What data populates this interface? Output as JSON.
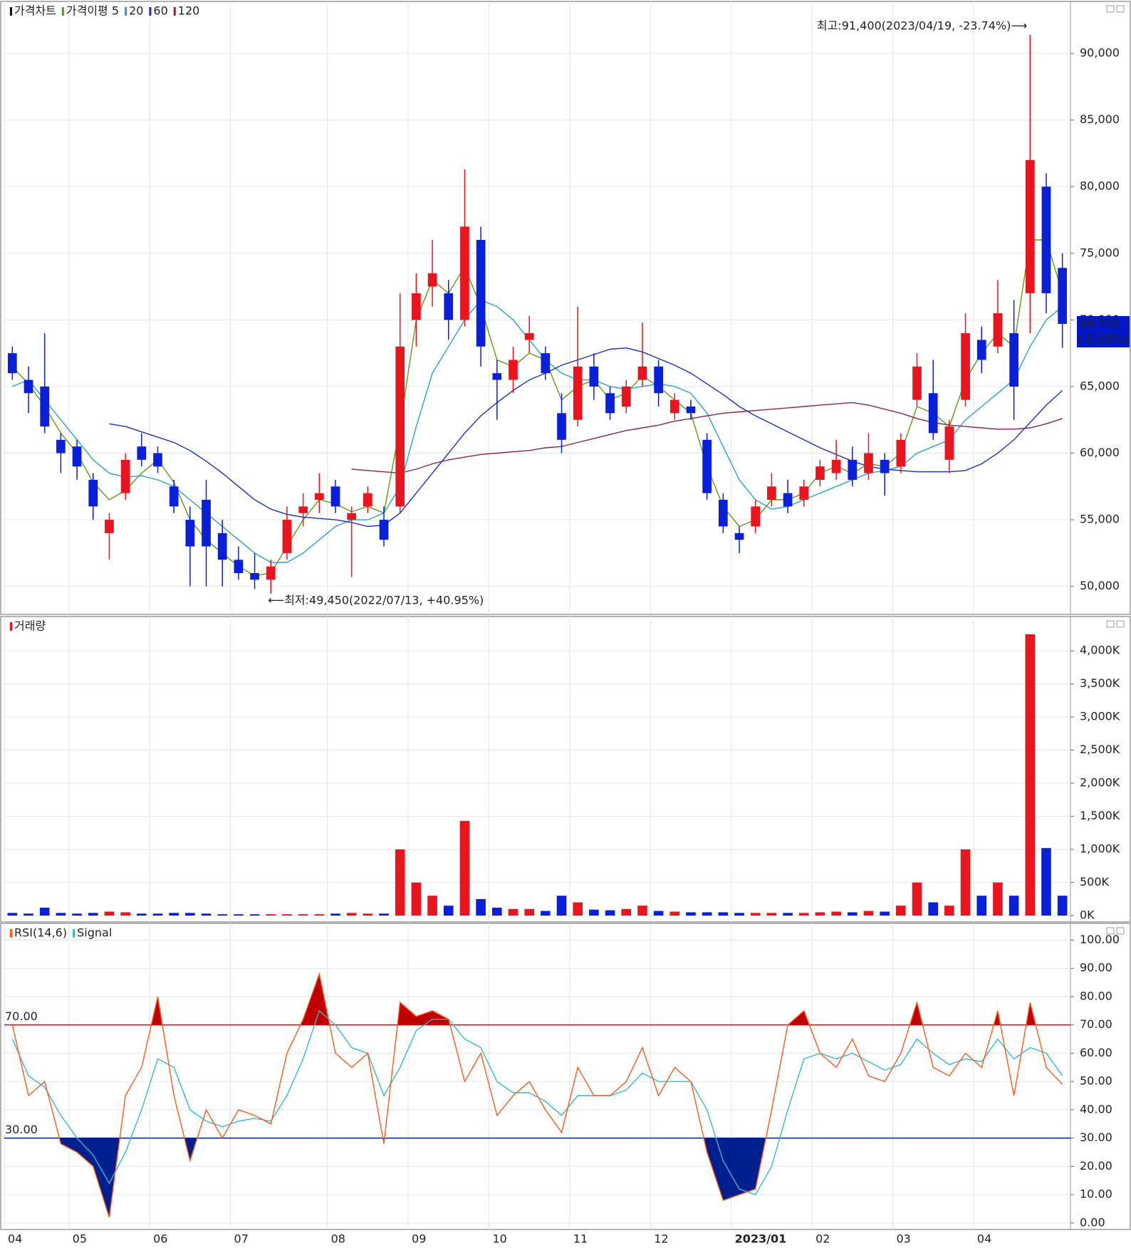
{
  "chart_data": [
    {
      "type": "candlestick",
      "name": "가격차트",
      "name_color": "#111111",
      "up_color": "#e8141e",
      "down_color": "#0a1fd8",
      "open": [
        67500,
        65500,
        65000,
        61000,
        60500,
        58000,
        54000,
        57000,
        60500,
        60000,
        57500,
        55000,
        56500,
        54000,
        52000,
        51000,
        50500,
        52500,
        55500,
        56500,
        57500,
        55000,
        56000,
        55000,
        56000,
        70000,
        72500,
        72000,
        70000,
        76000,
        66000,
        65500,
        68500,
        67500,
        63000,
        62500,
        66500,
        64500,
        63500,
        65500,
        66500,
        63000,
        63500,
        61000,
        56500,
        54000,
        54500,
        56500,
        57000,
        56500,
        58000,
        58500,
        59500,
        58500,
        59500,
        59000,
        64000,
        64500,
        59500,
        64000,
        68500,
        68000,
        69000,
        72000,
        80000,
        73900
      ],
      "high": [
        68000,
        66500,
        69000,
        61500,
        61000,
        58500,
        55500,
        60000,
        61500,
        60500,
        58000,
        56000,
        58000,
        55000,
        53000,
        52500,
        52000,
        56000,
        57000,
        58500,
        58000,
        56000,
        57500,
        56000,
        72000,
        73500,
        76000,
        73000,
        81300,
        77000,
        67000,
        68000,
        70300,
        68000,
        64500,
        71000,
        67500,
        65000,
        65500,
        69800,
        67000,
        64500,
        64000,
        61500,
        57000,
        54500,
        56500,
        58500,
        58000,
        58000,
        59500,
        61000,
        60500,
        61500,
        60000,
        61500,
        67500,
        67000,
        62500,
        70500,
        69500,
        73000,
        71500,
        91400,
        81000,
        75000
      ],
      "low": [
        65500,
        63000,
        61500,
        58500,
        58000,
        55000,
        52000,
        56500,
        59000,
        58500,
        55500,
        50000,
        50000,
        50000,
        50500,
        49800,
        49450,
        52000,
        54500,
        55500,
        55500,
        50700,
        55500,
        53000,
        55500,
        68000,
        71000,
        68500,
        69500,
        66500,
        62500,
        64500,
        67500,
        65500,
        60000,
        62000,
        64000,
        62500,
        63000,
        65000,
        63500,
        62500,
        62500,
        56500,
        54000,
        52500,
        54000,
        56000,
        55500,
        56000,
        57500,
        58000,
        57500,
        58000,
        56800,
        58500,
        63500,
        61000,
        58500,
        63500,
        66000,
        67500,
        62500,
        69000,
        70500,
        67900
      ],
      "close": [
        66000,
        64500,
        62000,
        60000,
        59000,
        56000,
        55000,
        59500,
        59500,
        59000,
        56000,
        53000,
        53000,
        52000,
        51000,
        50500,
        51500,
        55000,
        56000,
        57000,
        56000,
        55500,
        57000,
        53500,
        68000,
        72000,
        73500,
        70000,
        77000,
        68000,
        65500,
        67000,
        69000,
        66000,
        61000,
        66500,
        65000,
        63000,
        65000,
        66500,
        64500,
        64000,
        63000,
        57000,
        54500,
        53500,
        56000,
        57500,
        56000,
        57500,
        59000,
        59500,
        58000,
        60000,
        58500,
        61000,
        66500,
        61500,
        62000,
        69000,
        67000,
        70500,
        65000,
        82000,
        72000,
        69700
      ],
      "series": [
        {
          "name": "가격이평 5",
          "color": "#5f9a12",
          "values": [
            66500,
            65200,
            63500,
            61500,
            60000,
            57800,
            56500,
            57200,
            58500,
            59500,
            57800,
            55000,
            53500,
            52500,
            51500,
            50800,
            51000,
            53000,
            55000,
            56500,
            56200,
            55600,
            56000,
            55500,
            62000,
            70000,
            73000,
            72000,
            74000,
            71000,
            67000,
            66500,
            67500,
            67000,
            64000,
            65000,
            65500,
            64000,
            64500,
            65800,
            65000,
            64000,
            63000,
            59000,
            56000,
            54500,
            55000,
            56500,
            56500,
            57000,
            58500,
            59000,
            58500,
            59200,
            59000,
            60000,
            63500,
            63000,
            62000,
            65500,
            67500,
            69000,
            68000,
            76000,
            76000,
            72000
          ]
        },
        {
          "name": "20",
          "color": "#2a9fd8",
          "values": [
            65000,
            65500,
            64000,
            62500,
            61000,
            59500,
            58500,
            58200,
            58300,
            58000,
            57500,
            56500,
            55500,
            54500,
            53500,
            52500,
            51800,
            51800,
            52500,
            53500,
            54500,
            55000,
            55000,
            55500,
            57500,
            62000,
            66000,
            68000,
            70000,
            71500,
            71000,
            70000,
            68500,
            67000,
            66000,
            65500,
            65500,
            65000,
            64800,
            65000,
            65200,
            65000,
            64500,
            63000,
            60500,
            58000,
            56500,
            55800,
            56000,
            56500,
            57000,
            57500,
            58000,
            58500,
            58700,
            59000,
            60000,
            60500,
            61000,
            62500,
            63500,
            64500,
            65500,
            68000,
            70000,
            71000
          ]
        },
        {
          "name": "60",
          "color": "#1a2ed0",
          "values": [
            null,
            null,
            null,
            null,
            null,
            null,
            62200,
            62000,
            61600,
            61200,
            60800,
            60200,
            59400,
            58500,
            57500,
            56500,
            55800,
            55400,
            55200,
            55100,
            55000,
            54800,
            54500,
            54600,
            55500,
            57000,
            58500,
            60000,
            61500,
            62800,
            63800,
            64700,
            65500,
            66000,
            66600,
            67000,
            67400,
            67800,
            67900,
            67600,
            67100,
            66600,
            66000,
            65200,
            64400,
            63500,
            62800,
            62200,
            61600,
            61000,
            60400,
            59900,
            59400,
            59000,
            58800,
            58700,
            58600,
            58600,
            58600,
            58700,
            59200,
            60000,
            61000,
            62300,
            63600,
            64700
          ]
        },
        {
          "name": "120",
          "color": "#8b2252",
          "values": [
            null,
            null,
            null,
            null,
            null,
            null,
            null,
            null,
            null,
            null,
            null,
            null,
            null,
            null,
            null,
            null,
            null,
            null,
            null,
            null,
            null,
            58800,
            58700,
            58600,
            58500,
            58800,
            59200,
            59500,
            59700,
            59900,
            60000,
            60100,
            60200,
            60400,
            60500,
            60800,
            61100,
            61400,
            61700,
            61900,
            62100,
            62400,
            62600,
            62800,
            63000,
            63100,
            63200,
            63300,
            63400,
            63500,
            63600,
            63700,
            63800,
            63600,
            63300,
            63000,
            62600,
            62300,
            62100,
            62000,
            61900,
            61800,
            61800,
            61900,
            62200,
            62600
          ]
        }
      ],
      "ylim": [
        47900,
        93900
      ],
      "yticks": [
        {
          "value": 50000,
          "label": "50,000"
        },
        {
          "value": 55000,
          "label": "55,000"
        },
        {
          "value": 60000,
          "label": "60,000"
        },
        {
          "value": 65000,
          "label": "65,000"
        },
        {
          "value": 70000,
          "label": "70,000"
        },
        {
          "value": 75000,
          "label": "75,000"
        },
        {
          "value": 80000,
          "label": "80,000"
        },
        {
          "value": 85000,
          "label": "85,000"
        },
        {
          "value": 90000,
          "label": "90,000"
        }
      ],
      "high_annotation": "최고:91,400(2023/04/19, -23.74%)⟶",
      "low_annotation": "⟵최저:49,450(2022/07/13, +40.95%)",
      "last_price_label": "69,700",
      "last_change_label": "(-5.68%)",
      "last_box_color": "#0018c8",
      "annotation_color": "#e8141e",
      "grid": true
    },
    {
      "type": "bar",
      "name": "거래량",
      "name_color": "#e8141e",
      "values": [
        40,
        30,
        120,
        40,
        30,
        40,
        60,
        50,
        30,
        30,
        40,
        40,
        30,
        20,
        20,
        20,
        20,
        20,
        20,
        20,
        30,
        40,
        30,
        30,
        1000,
        500,
        300,
        150,
        1430,
        250,
        120,
        100,
        100,
        70,
        300,
        200,
        90,
        80,
        100,
        150,
        70,
        60,
        50,
        50,
        50,
        40,
        40,
        40,
        40,
        40,
        50,
        60,
        50,
        70,
        60,
        150,
        500,
        200,
        150,
        1000,
        300,
        500,
        300,
        4250,
        1020,
        300
      ],
      "ylim": [
        -96,
        4518
      ],
      "yticks": [
        {
          "value": 0,
          "label": "0K"
        },
        {
          "value": 500,
          "label": "500K"
        },
        {
          "value": 1000,
          "label": "1,000K"
        },
        {
          "value": 1500,
          "label": "1,500K"
        },
        {
          "value": 2000,
          "label": "2,000K"
        },
        {
          "value": 2500,
          "label": "2,500K"
        },
        {
          "value": 3000,
          "label": "3,000K"
        },
        {
          "value": 3500,
          "label": "3,500K"
        },
        {
          "value": 4000,
          "label": "4,000K"
        }
      ],
      "grid": true
    },
    {
      "type": "line",
      "categories": [
        "04",
        null,
        null,
        null,
        "05",
        null,
        null,
        null,
        null,
        "06",
        null,
        null,
        null,
        null,
        "07",
        null,
        null,
        null,
        null,
        null,
        "08",
        null,
        null,
        null,
        null,
        "09",
        null,
        null,
        null,
        null,
        "10",
        null,
        null,
        null,
        null,
        "11",
        null,
        null,
        null,
        null,
        "12",
        null,
        null,
        null,
        null,
        "2023/01",
        null,
        null,
        null,
        null,
        "02",
        null,
        null,
        null,
        null,
        "03",
        null,
        null,
        null,
        null,
        "04",
        null,
        null,
        null,
        null,
        null
      ],
      "series": [
        {
          "name": "RSI(14,6)",
          "color": "#ff5a1e",
          "values": [
            70,
            45,
            50,
            28,
            25,
            20,
            2,
            45,
            55,
            80,
            45,
            22,
            40,
            30,
            40,
            38,
            35,
            60,
            72,
            88,
            60,
            55,
            60,
            28,
            78,
            73,
            75,
            72,
            50,
            60,
            38,
            45,
            50,
            40,
            32,
            55,
            45,
            45,
            50,
            62,
            45,
            55,
            50,
            25,
            8,
            10,
            12,
            40,
            70,
            75,
            60,
            55,
            65,
            52,
            50,
            60,
            78,
            55,
            52,
            60,
            55,
            75,
            45,
            78,
            55,
            49
          ]
        },
        {
          "name": "Signal",
          "color": "#35b8d0",
          "values": [
            65,
            52,
            48,
            38,
            30,
            24,
            14,
            25,
            40,
            58,
            55,
            40,
            36,
            34,
            36,
            37,
            36,
            45,
            58,
            75,
            70,
            62,
            60,
            45,
            55,
            68,
            72,
            72,
            65,
            62,
            50,
            46,
            46,
            43,
            38,
            45,
            45,
            45,
            47,
            53,
            50,
            50,
            50,
            40,
            22,
            12,
            10,
            20,
            40,
            58,
            60,
            58,
            60,
            57,
            54,
            56,
            65,
            60,
            56,
            58,
            57,
            65,
            58,
            62,
            60,
            52
          ]
        }
      ],
      "levels": [
        {
          "value": 70,
          "label": "70.00",
          "color": "#e00000",
          "fill": "#c00000",
          "side": "above"
        },
        {
          "value": 30,
          "label": "30.00",
          "color": "#001f8f",
          "fill": "#001f8f",
          "side": "below"
        }
      ],
      "ylim": [
        -2.3,
        105.9
      ],
      "yticks": [
        {
          "value": 0,
          "label": "0.00"
        },
        {
          "value": 10,
          "label": "10.00"
        },
        {
          "value": 20,
          "label": "20.00"
        },
        {
          "value": 30,
          "label": "30.00"
        },
        {
          "value": 40,
          "label": "40.00"
        },
        {
          "value": 50,
          "label": "50.00"
        },
        {
          "value": 60,
          "label": "60.00"
        },
        {
          "value": 70,
          "label": "70.00"
        },
        {
          "value": 80,
          "label": "80.00"
        },
        {
          "value": 90,
          "label": "90.00"
        },
        {
          "value": 100,
          "label": "100.00"
        }
      ],
      "grid": true
    }
  ]
}
